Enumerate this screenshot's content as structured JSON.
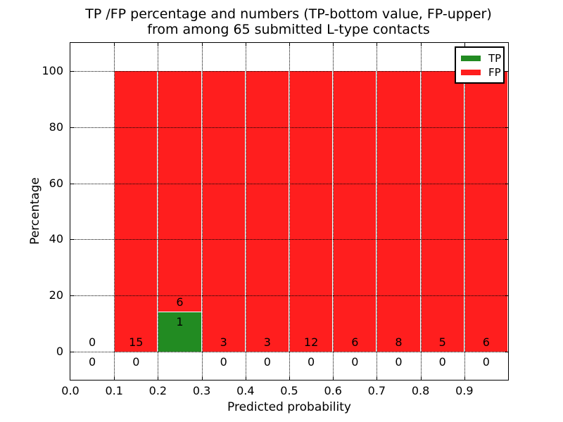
{
  "title": {
    "line1": "TP /FP percentage and numbers (TP-bottom value, FP-upper)",
    "line2": "from among 65 submitted L-type contacts"
  },
  "axes": {
    "xlabel": "Predicted probability",
    "ylabel": "Percentage",
    "yticks": [
      "0",
      "20",
      "40",
      "60",
      "80",
      "100"
    ],
    "xticks": [
      "0.0",
      "0.1",
      "0.2",
      "0.3",
      "0.4",
      "0.5",
      "0.6",
      "0.7",
      "0.8",
      "0.9"
    ]
  },
  "legend": [
    {
      "label": "TP",
      "color": "#228B22"
    },
    {
      "label": "FP",
      "color": "#FF1E1E"
    }
  ],
  "colors": {
    "tp": "#228B22",
    "fp": "#FF1E1E",
    "grid": "#000000",
    "background": "#ffffff"
  },
  "chart_data": {
    "type": "bar",
    "stacked": true,
    "title": "TP /FP percentage and numbers (TP-bottom value, FP-upper) from among 65 submitted L-type contacts",
    "xlabel": "Predicted probability",
    "ylabel": "Percentage",
    "xlim": [
      0.0,
      1.0
    ],
    "ylim": [
      -10,
      110
    ],
    "grid": "dotted, both axes, drawn over bars",
    "legend_position": "upper right",
    "bin_width": 0.1,
    "categories": [
      "0.0-0.1",
      "0.1-0.2",
      "0.2-0.3",
      "0.3-0.4",
      "0.4-0.5",
      "0.5-0.6",
      "0.6-0.7",
      "0.7-0.8",
      "0.8-0.9",
      "0.9-1.0"
    ],
    "series": [
      {
        "name": "TP",
        "color": "#228B22",
        "counts": [
          0,
          0,
          1,
          0,
          0,
          0,
          0,
          0,
          0,
          0
        ],
        "pct": [
          0,
          0,
          14.3,
          0,
          0,
          0,
          0,
          0,
          0,
          0
        ]
      },
      {
        "name": "FP",
        "color": "#FF1E1E",
        "counts": [
          0,
          15,
          6,
          3,
          3,
          12,
          6,
          8,
          5,
          6
        ],
        "pct": [
          0,
          100,
          85.7,
          100,
          100,
          100,
          100,
          100,
          100,
          100
        ]
      }
    ],
    "bins": [
      {
        "range": [
          0.0,
          0.1
        ],
        "tp": 0,
        "fp": 0
      },
      {
        "range": [
          0.1,
          0.2
        ],
        "tp": 0,
        "fp": 15
      },
      {
        "range": [
          0.2,
          0.3
        ],
        "tp": 1,
        "fp": 6
      },
      {
        "range": [
          0.3,
          0.4
        ],
        "tp": 0,
        "fp": 3
      },
      {
        "range": [
          0.4,
          0.5
        ],
        "tp": 0,
        "fp": 3
      },
      {
        "range": [
          0.5,
          0.6
        ],
        "tp": 0,
        "fp": 12
      },
      {
        "range": [
          0.6,
          0.7
        ],
        "tp": 0,
        "fp": 6
      },
      {
        "range": [
          0.7,
          0.8
        ],
        "tp": 0,
        "fp": 8
      },
      {
        "range": [
          0.8,
          0.9
        ],
        "tp": 0,
        "fp": 5
      },
      {
        "range": [
          0.9,
          1.0
        ],
        "tp": 0,
        "fp": 6
      }
    ],
    "total_contacts": 65
  }
}
